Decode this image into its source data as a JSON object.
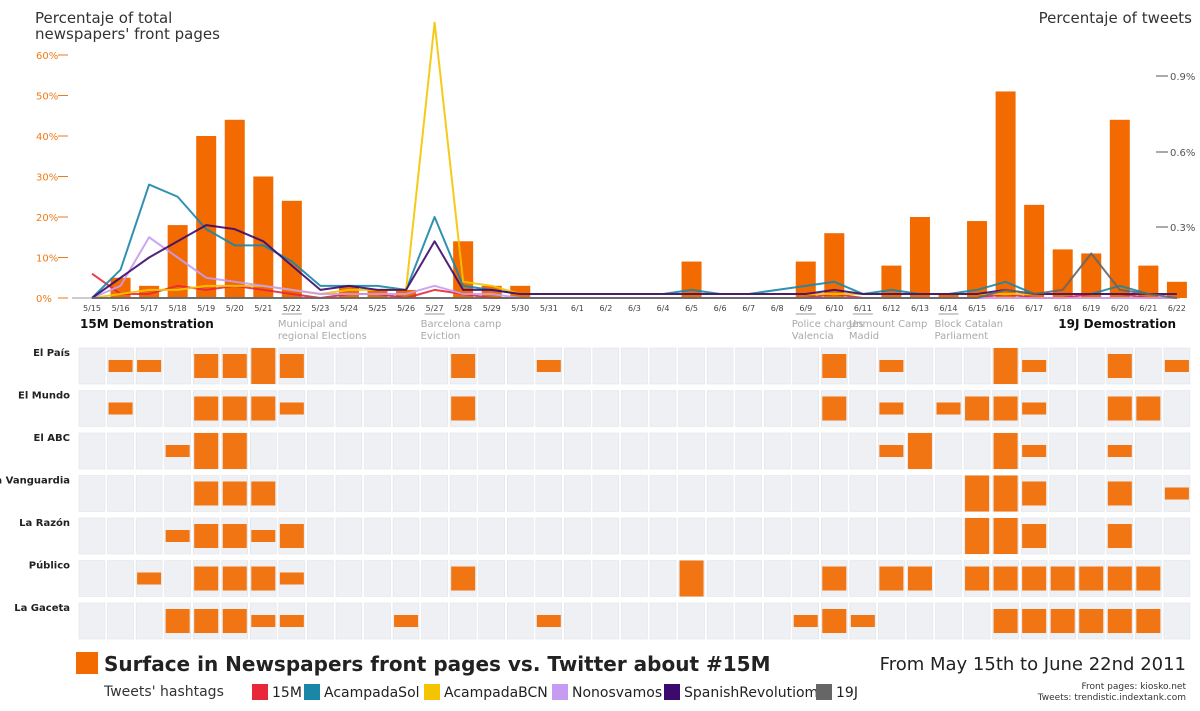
{
  "chart_data": {
    "type": "bar",
    "title": "",
    "ylabel_left_line1": "Percentaje of total",
    "ylabel_left_line2": "newspapers' front pages",
    "ylabel_right": "Percentaje of tweets",
    "left_ticks": [
      "0%",
      "10%",
      "20%",
      "30%",
      "40%",
      "50%",
      "60%"
    ],
    "right_ticks": [
      "0.3%",
      "0.6%",
      "0.9%"
    ],
    "ylim": [
      0,
      60
    ],
    "dates": [
      "5/15",
      "5/16",
      "5/17",
      "5/18",
      "5/19",
      "5/20",
      "5/21",
      "5/22",
      "5/23",
      "5/24",
      "5/25",
      "5/26",
      "5/27",
      "5/28",
      "5/29",
      "5/30",
      "5/31",
      "6/1",
      "6/2",
      "6/3",
      "6/4",
      "6/5",
      "6/6",
      "6/7",
      "6/8",
      "6/9",
      "6/10",
      "6/11",
      "6/12",
      "6/13",
      "6/14",
      "6/15",
      "6/16",
      "6/17",
      "6/18",
      "6/19",
      "6/20",
      "6/21",
      "6/22"
    ],
    "front_page_percent": [
      0,
      5,
      3,
      18,
      40,
      44,
      30,
      24,
      0,
      3,
      2,
      2,
      0,
      14,
      3,
      3,
      0,
      0,
      0,
      0,
      0,
      9,
      0,
      0,
      0,
      9,
      16,
      0,
      8,
      20,
      1,
      19,
      51,
      23,
      12,
      11,
      44,
      8,
      4
    ],
    "series": [
      {
        "name": "15M",
        "color": "#e8283a",
        "values": [
          6,
          1,
          1,
          3,
          2,
          3,
          2,
          1,
          0,
          1,
          1,
          0,
          2,
          1,
          0,
          0,
          0,
          0,
          0,
          0,
          0,
          0,
          0,
          0,
          0,
          0,
          1,
          0,
          0,
          0,
          0,
          0,
          1,
          0,
          0,
          1,
          1,
          0,
          0
        ]
      },
      {
        "name": "AcampadaSol",
        "color": "#1a86a8",
        "values": [
          0,
          7,
          28,
          25,
          17,
          13,
          13,
          9,
          3,
          3,
          3,
          2,
          20,
          3,
          2,
          1,
          1,
          1,
          1,
          1,
          1,
          2,
          1,
          1,
          2,
          3,
          4,
          1,
          2,
          1,
          1,
          2,
          4,
          1,
          1,
          1,
          3,
          1,
          1
        ]
      },
      {
        "name": "AcampadaBCN",
        "color": "#f5c400",
        "values": [
          0,
          1,
          2,
          2,
          3,
          3,
          3,
          2,
          1,
          2,
          2,
          2,
          68,
          4,
          3,
          1,
          1,
          1,
          1,
          1,
          1,
          1,
          1,
          1,
          1,
          1,
          1,
          1,
          1,
          1,
          1,
          1,
          1,
          1,
          1,
          1,
          1,
          1,
          1
        ]
      },
      {
        "name": "Nonosvamos",
        "color": "#c79cf0",
        "values": [
          0,
          3,
          15,
          10,
          5,
          4,
          3,
          2,
          1,
          1,
          1,
          1,
          3,
          1,
          1,
          0,
          0,
          0,
          0,
          0,
          0,
          0,
          0,
          0,
          0,
          0,
          0,
          0,
          0,
          0,
          0,
          0,
          0,
          0,
          0,
          0,
          0,
          0,
          0
        ]
      },
      {
        "name": "SpanishRevolutiom",
        "color": "#3c0a6e",
        "values": [
          0,
          5,
          10,
          14,
          18,
          17,
          14,
          8,
          2,
          3,
          2,
          2,
          14,
          2,
          2,
          1,
          1,
          1,
          1,
          1,
          1,
          1,
          1,
          1,
          1,
          1,
          2,
          1,
          1,
          1,
          1,
          1,
          2,
          1,
          1,
          1,
          1,
          1,
          1
        ]
      },
      {
        "name": "19J",
        "color": "#666666",
        "values": [
          0,
          0,
          0,
          0,
          0,
          0,
          0,
          0,
          0,
          0,
          0,
          0,
          0,
          0,
          0,
          0,
          0,
          0,
          0,
          0,
          0,
          0,
          0,
          0,
          0,
          0,
          0,
          0,
          0,
          0,
          0,
          0,
          2,
          1,
          2,
          11,
          2,
          1,
          0
        ]
      }
    ],
    "annotations": [
      {
        "date": "5/15",
        "text": "15M Demonstration",
        "strong": true
      },
      {
        "date": "5/22",
        "text": "Municipal and",
        "text2": "regional Elections",
        "strong": false
      },
      {
        "date": "5/27",
        "text": "Barcelona camp",
        "text2": "Eviction",
        "strong": false
      },
      {
        "date": "6/9",
        "text": "Police charges",
        "text2": "Valencia",
        "strong": false
      },
      {
        "date": "6/11",
        "text": "Unmount Camp",
        "text2": "Madid",
        "strong": false
      },
      {
        "date": "6/14",
        "text": "Block Catalan",
        "text2": "Parliament",
        "strong": false
      },
      {
        "date": "6/19",
        "text": "19J Demostration",
        "strong": true
      }
    ],
    "newspapers": [
      "El País",
      "El Mundo",
      "El ABC",
      "La Vanguardia",
      "La Razón",
      "Público",
      "La Gaceta"
    ],
    "newspaper_coverage": [
      [
        0,
        1,
        1,
        0,
        2,
        2,
        3,
        2,
        0,
        0,
        0,
        0,
        0,
        2,
        0,
        0,
        1,
        0,
        0,
        0,
        0,
        0,
        0,
        0,
        0,
        0,
        2,
        0,
        1,
        0,
        0,
        0,
        3,
        1,
        0,
        0,
        2,
        0,
        1
      ],
      [
        0,
        1,
        0,
        0,
        2,
        2,
        2,
        1,
        0,
        0,
        0,
        0,
        0,
        2,
        0,
        0,
        0,
        0,
        0,
        0,
        0,
        0,
        0,
        0,
        0,
        0,
        2,
        0,
        1,
        0,
        1,
        2,
        2,
        1,
        0,
        0,
        2,
        2,
        0
      ],
      [
        0,
        0,
        0,
        1,
        3,
        3,
        0,
        0,
        0,
        0,
        0,
        0,
        0,
        0,
        0,
        0,
        0,
        0,
        0,
        0,
        0,
        0,
        0,
        0,
        0,
        0,
        0,
        0,
        1,
        3,
        0,
        0,
        3,
        1,
        0,
        0,
        1,
        0,
        0
      ],
      [
        0,
        0,
        0,
        0,
        2,
        2,
        2,
        0,
        0,
        0,
        0,
        0,
        0,
        0,
        0,
        0,
        0,
        0,
        0,
        0,
        0,
        0,
        0,
        0,
        0,
        0,
        0,
        0,
        0,
        0,
        0,
        3,
        3,
        2,
        0,
        0,
        2,
        0,
        1
      ],
      [
        0,
        0,
        0,
        1,
        2,
        2,
        1,
        2,
        0,
        0,
        0,
        0,
        0,
        0,
        0,
        0,
        0,
        0,
        0,
        0,
        0,
        0,
        0,
        0,
        0,
        0,
        0,
        0,
        0,
        0,
        0,
        3,
        3,
        2,
        0,
        0,
        2,
        0,
        0
      ],
      [
        0,
        0,
        1,
        0,
        2,
        2,
        2,
        1,
        0,
        0,
        0,
        0,
        0,
        2,
        0,
        0,
        0,
        0,
        0,
        0,
        0,
        3,
        0,
        0,
        0,
        0,
        2,
        0,
        2,
        2,
        0,
        2,
        2,
        2,
        2,
        2,
        2,
        2,
        0
      ],
      [
        0,
        0,
        0,
        2,
        2,
        2,
        1,
        1,
        0,
        0,
        0,
        1,
        0,
        0,
        0,
        0,
        1,
        0,
        0,
        0,
        0,
        0,
        0,
        0,
        0,
        1,
        2,
        1,
        0,
        0,
        0,
        0,
        2,
        2,
        2,
        2,
        2,
        2,
        0
      ]
    ]
  },
  "footer": {
    "title": "Surface in Newspapers front pages vs. Twitter about #15M",
    "range": "From May 15th to June 22nd 2011",
    "hashtags_label": "Tweets' hashtags",
    "legend": [
      "15M",
      "AcampadaSol",
      "AcampadaBCN",
      "Nonosvamos",
      "SpanishRevolutiom",
      "19J"
    ],
    "credits_line1": "Front pages: kiosko.net",
    "credits_line2": "Tweets: trendistic.indextank.com",
    "bar_color": "#f26a00"
  }
}
